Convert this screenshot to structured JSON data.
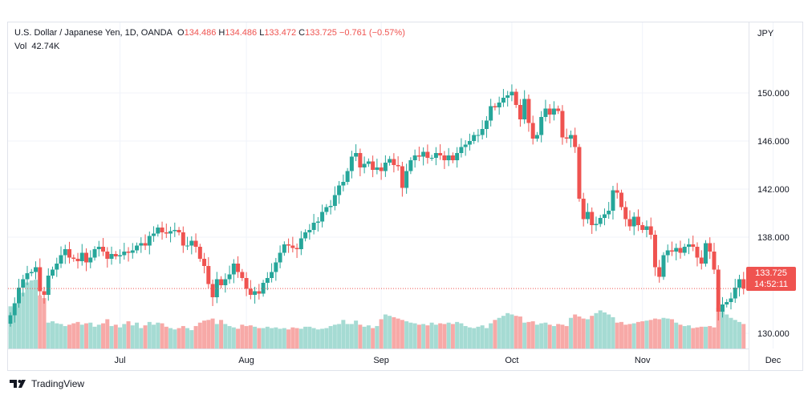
{
  "header": {
    "symbol": "U.S. Dollar / Japanese Yen, 1D, OANDA",
    "open_label": "O",
    "open": "134.486",
    "high_label": "H",
    "high": "134.486",
    "low_label": "L",
    "low": "133.472",
    "close_label": "C",
    "close": "133.725",
    "change": "−0.761 (−0.57%)",
    "vol_label": "Vol",
    "vol": "42.74K"
  },
  "price_badge": {
    "price": "133.725",
    "countdown": "14:52:11"
  },
  "footer": {
    "brand": "TradingView"
  },
  "colors": {
    "up": "#26a69a",
    "down": "#ef5350",
    "up_vol": "#a5dbd3",
    "down_vol": "#f7a9a7",
    "grid": "#f0f3fa"
  },
  "chart_data": {
    "type": "candlestick",
    "currency_label": "JPY",
    "y_ticks": [
      "150.000",
      "146.000",
      "142.000",
      "138.000",
      "130.000"
    ],
    "ylim": [
      127.4,
      152.4
    ],
    "last_price_line": 133.725,
    "x_ticks": [
      {
        "label": "Jul",
        "index": 26
      },
      {
        "label": "Aug",
        "index": 56
      },
      {
        "label": "Sep",
        "index": 88
      },
      {
        "label": "Oct",
        "index": 119
      },
      {
        "label": "Nov",
        "index": 150
      },
      {
        "label": "Dec",
        "index": 181
      }
    ],
    "closes": [
      131.5,
      132.5,
      133.8,
      134.5,
      135,
      135.1,
      135.5,
      133.5,
      133.2,
      134.8,
      135.3,
      135.8,
      136.5,
      137,
      136.3,
      136.2,
      136,
      136.7,
      135.9,
      136.3,
      137,
      137.2,
      136.8,
      136.2,
      136.6,
      136.4,
      136.5,
      136.8,
      136.7,
      136.9,
      137.3,
      137.5,
      137.3,
      138.1,
      138.3,
      138.8,
      138.4,
      138.3,
      138.5,
      138.6,
      138.4,
      137.3,
      137.3,
      137.7,
      137.2,
      136.2,
      135.6,
      134.1,
      133,
      134.5,
      134,
      134.5,
      134.9,
      135.8,
      135.1,
      134.6,
      133.7,
      133.2,
      133.5,
      133.3,
      134.2,
      134.6,
      135.1,
      135.9,
      136.7,
      137.4,
      137.3,
      137.1,
      137,
      137.9,
      138.4,
      138.6,
      139.2,
      139.3,
      140.1,
      140.5,
      140.6,
      141.5,
      142.3,
      142.6,
      143.5,
      144.7,
      145,
      143.8,
      144.1,
      144.3,
      143.6,
      143.8,
      143.5,
      144.2,
      144.5,
      144,
      143.9,
      142.1,
      143.5,
      144.4,
      144.8,
      144.7,
      145.1,
      144.6,
      144.6,
      145,
      144.8,
      144.4,
      144.8,
      144.4,
      145,
      145.5,
      145.7,
      146,
      146.5,
      146.5,
      147,
      147.7,
      148.9,
      148.8,
      149.2,
      149.6,
      149.8,
      150.1,
      149,
      147.8,
      149.5,
      147.5,
      146.2,
      146.5,
      148,
      148.7,
      148.2,
      148.7,
      148.5,
      146.3,
      146.2,
      146.5,
      145.5,
      141.2,
      139.5,
      140.1,
      139,
      139.1,
      139.6,
      139.9,
      140.2,
      141.9,
      141.7,
      140.5,
      139.5,
      138.9,
      139.7,
      139,
      138.6,
      138.9,
      138.2,
      135.5,
      134.7,
      136.5,
      136.9,
      136.8,
      137.1,
      136.7,
      137.2,
      137.4,
      137.2,
      136.3,
      135.8,
      137.5,
      136.8,
      135.3,
      131.8,
      132.4,
      132.6,
      132.9,
      133.8,
      134.5,
      133.725
    ],
    "volumes": [
      0.62,
      0.6,
      0.74,
      0.82,
      0.97,
      1,
      1.01,
      0.78,
      0.74,
      0.38,
      0.4,
      0.37,
      0.36,
      0.33,
      0.35,
      0.37,
      0.39,
      0.35,
      0.37,
      0.38,
      0.32,
      0.35,
      0.37,
      0.43,
      0.33,
      0.35,
      0.31,
      0.36,
      0.4,
      0.34,
      0.38,
      0.3,
      0.34,
      0.39,
      0.35,
      0.38,
      0.37,
      0.32,
      0.3,
      0.28,
      0.3,
      0.33,
      0.3,
      0.27,
      0.33,
      0.38,
      0.41,
      0.42,
      0.44,
      0.36,
      0.42,
      0.36,
      0.33,
      0.31,
      0.29,
      0.35,
      0.33,
      0.34,
      0.32,
      0.3,
      0.3,
      0.32,
      0.3,
      0.31,
      0.29,
      0.3,
      0.28,
      0.31,
      0.3,
      0.29,
      0.32,
      0.32,
      0.3,
      0.28,
      0.29,
      0.3,
      0.33,
      0.35,
      0.36,
      0.42,
      0.36,
      0.36,
      0.41,
      0.35,
      0.32,
      0.34,
      0.3,
      0.33,
      0.43,
      0.5,
      0.48,
      0.46,
      0.44,
      0.42,
      0.4,
      0.38,
      0.37,
      0.35,
      0.36,
      0.34,
      0.38,
      0.35,
      0.37,
      0.36,
      0.38,
      0.36,
      0.39,
      0.37,
      0.33,
      0.31,
      0.3,
      0.32,
      0.34,
      0.3,
      0.37,
      0.42,
      0.45,
      0.48,
      0.52,
      0.5,
      0.48,
      0.47,
      0.38,
      0.39,
      0.4,
      0.35,
      0.37,
      0.38,
      0.35,
      0.33,
      0.36,
      0.35,
      0.33,
      0.45,
      0.5,
      0.47,
      0.44,
      0.43,
      0.48,
      0.52,
      0.56,
      0.53,
      0.5,
      0.46,
      0.38,
      0.39,
      0.35,
      0.36,
      0.37,
      0.39,
      0.4,
      0.41,
      0.42,
      0.44,
      0.43,
      0.45,
      0.44,
      0.43,
      0.38,
      0.35,
      0.33,
      0.34,
      0.3,
      0.31,
      0.32,
      0.32,
      0.33,
      0.31,
      0.6,
      0.55,
      0.5,
      0.45,
      0.42,
      0.39,
      0.36
    ]
  }
}
